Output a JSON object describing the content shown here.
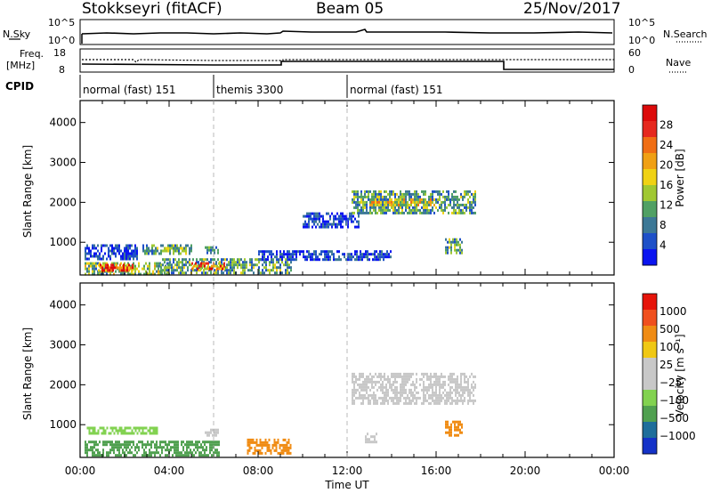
{
  "header": {
    "radar": "Stokkseyri (fitACF)",
    "beam": "Beam 05",
    "date": "25/Nov/2017"
  },
  "noise_panel": {
    "left_label": "N.Sky",
    "right_label": "N.Search",
    "ticks_left": [
      "10^5",
      "10^0"
    ],
    "ticks_right": [
      "10^5",
      "10^0"
    ]
  },
  "freq_panel": {
    "left_label_1": "Freq.",
    "left_label_2": "[MHz]",
    "right_label": "Nave",
    "ticks_left": [
      "18",
      "8"
    ],
    "ticks_right": [
      "60",
      "0"
    ]
  },
  "cpid": {
    "label": "CPID",
    "segments": [
      {
        "start_hour": 0,
        "label": "normal (fast) 151"
      },
      {
        "start_hour": 6,
        "label": "themis 3300"
      },
      {
        "start_hour": 12,
        "label": "normal (fast) 151"
      }
    ]
  },
  "chart_data": [
    {
      "type": "heatmap",
      "name": "power",
      "ylabel": "Slant Range [km]",
      "xlim": [
        0,
        24
      ],
      "ylim": [
        180,
        4550
      ],
      "yticks": [
        1000,
        2000,
        3000,
        4000
      ],
      "colorbar": {
        "label": "Power [dB]",
        "ticks": [
          "4",
          "8",
          "12",
          "16",
          "20",
          "24",
          "28"
        ],
        "colors": [
          "#0a14f0",
          "#1e50c8",
          "#3c7896",
          "#50a064",
          "#a0c832",
          "#f0d214",
          "#f0a014",
          "#f06e14",
          "#e6281e",
          "#dc0a0a"
        ]
      },
      "regions": [
        {
          "t0": 0.2,
          "t1": 4.0,
          "r0": 200,
          "r1": 500,
          "value": 14
        },
        {
          "t0": 0.8,
          "t1": 2.4,
          "r0": 280,
          "r1": 460,
          "value": 28
        },
        {
          "t0": 2.8,
          "t1": 5.0,
          "r0": 700,
          "r1": 950,
          "value": 12
        },
        {
          "t0": 0.2,
          "t1": 2.6,
          "r0": 550,
          "r1": 950,
          "value": 6
        },
        {
          "t0": 3.6,
          "t1": 9.5,
          "r0": 250,
          "r1": 600,
          "value": 12
        },
        {
          "t0": 5.0,
          "t1": 6.5,
          "r0": 300,
          "r1": 500,
          "value": 24
        },
        {
          "t0": 5.6,
          "t1": 6.2,
          "r0": 700,
          "r1": 900,
          "value": 10
        },
        {
          "t0": 8.0,
          "t1": 14.0,
          "r0": 550,
          "r1": 800,
          "value": 6
        },
        {
          "t0": 12.2,
          "t1": 17.8,
          "r0": 1700,
          "r1": 2300,
          "value": 12
        },
        {
          "t0": 13.0,
          "t1": 16.0,
          "r0": 1900,
          "r1": 2100,
          "value": 18
        },
        {
          "t0": 10.0,
          "t1": 12.5,
          "r0": 1350,
          "r1": 1750,
          "value": 6
        },
        {
          "t0": 16.4,
          "t1": 17.2,
          "r0": 700,
          "r1": 1100,
          "value": 12
        }
      ]
    },
    {
      "type": "heatmap",
      "name": "velocity",
      "xlabel": "Time UT",
      "ylabel": "Slant Range [km]",
      "xlim": [
        0,
        24
      ],
      "ylim": [
        180,
        4550
      ],
      "xticks": [
        "00:00",
        "04:00",
        "08:00",
        "12:00",
        "16:00",
        "20:00",
        "00:00"
      ],
      "yticks": [
        1000,
        2000,
        3000,
        4000
      ],
      "colorbar": {
        "label": "Velocity [m s⁻¹]",
        "ticks": [
          "1000",
          "500",
          "100",
          "25",
          "−25",
          "−100",
          "−500",
          "−1000"
        ],
        "colors": [
          "#1432c8",
          "#1e6e9b",
          "#50a050",
          "#82d250",
          "#c8c8c8",
          "#c8c8c8",
          "#f0c814",
          "#f08c14",
          "#f0501e",
          "#e6140a"
        ]
      },
      "regions": [
        {
          "t0": 0.2,
          "t1": 6.2,
          "r0": 220,
          "r1": 600,
          "value": 150
        },
        {
          "t0": 0.3,
          "t1": 3.5,
          "r0": 750,
          "r1": 950,
          "value": 60
        },
        {
          "t0": 5.6,
          "t1": 6.2,
          "r0": 700,
          "r1": 900,
          "value": 0
        },
        {
          "t0": 7.5,
          "t1": 9.5,
          "r0": 250,
          "r1": 650,
          "value": -150
        },
        {
          "t0": 12.2,
          "t1": 17.8,
          "r0": 1500,
          "r1": 2300,
          "value": 0
        },
        {
          "t0": 16.4,
          "t1": 17.2,
          "r0": 700,
          "r1": 1100,
          "value": -300
        },
        {
          "t0": 12.8,
          "t1": 13.3,
          "r0": 550,
          "r1": 800,
          "value": 0
        }
      ]
    }
  ]
}
